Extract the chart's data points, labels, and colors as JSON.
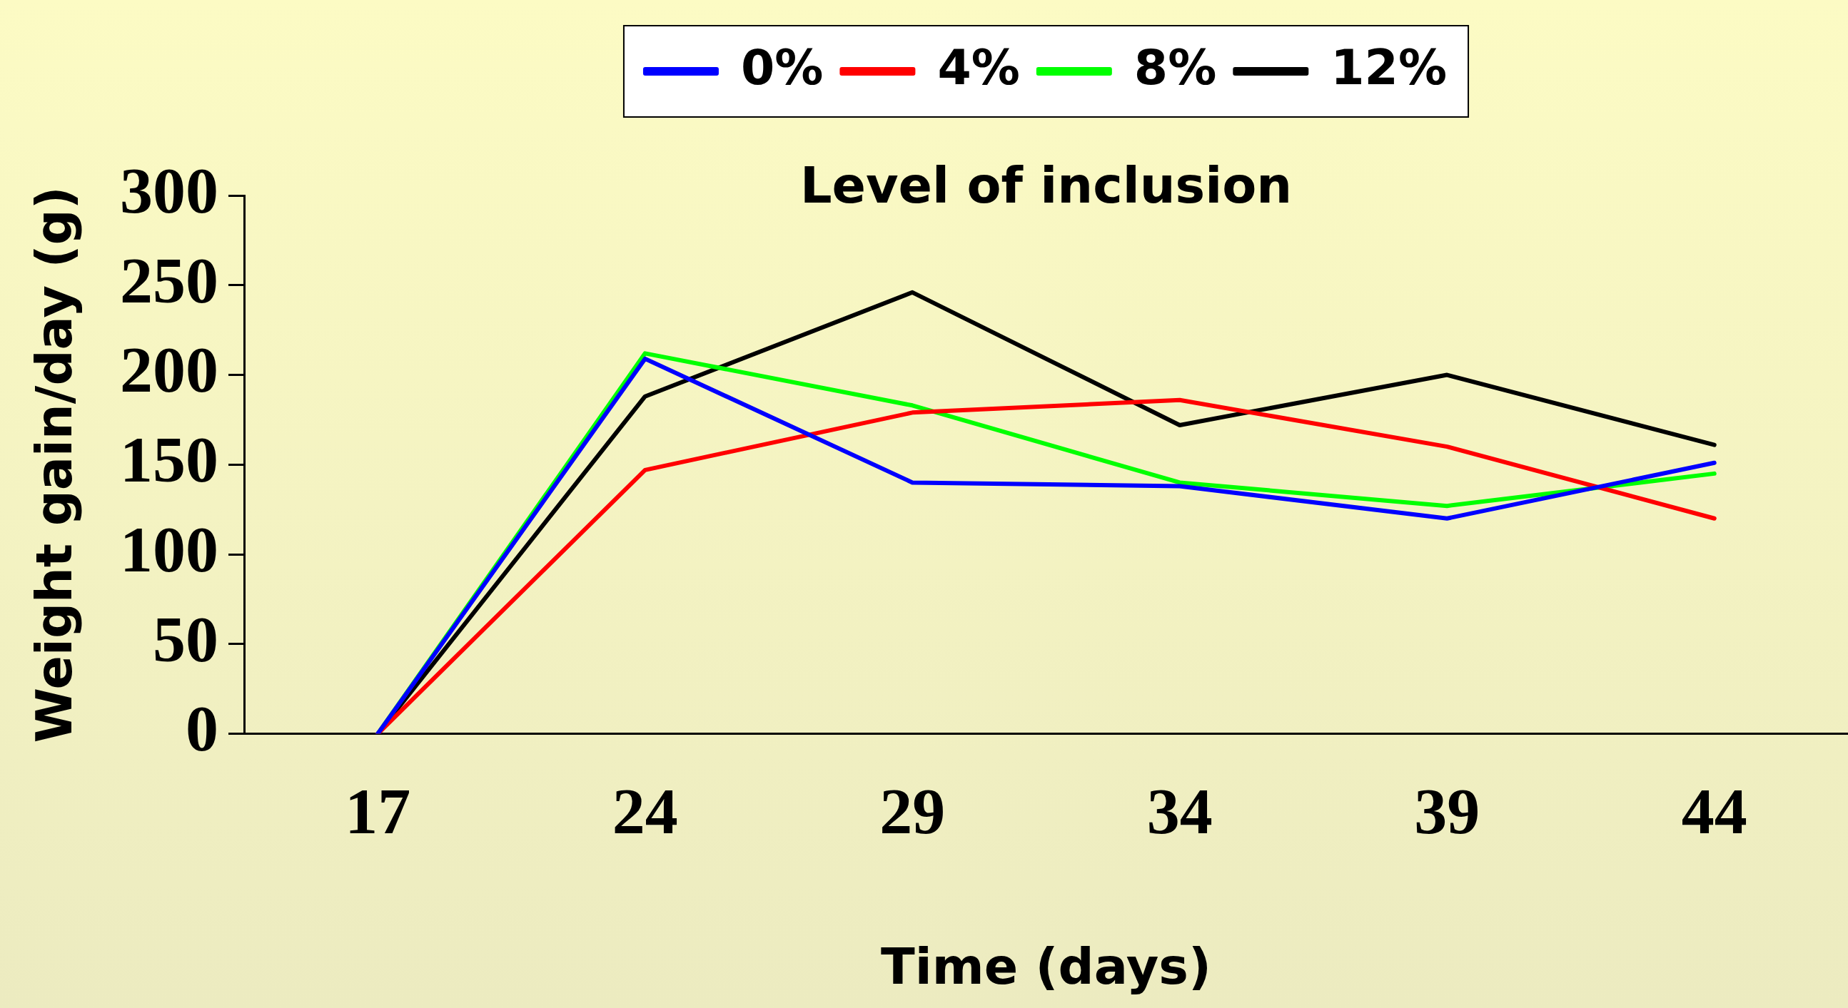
{
  "chart_data": {
    "type": "line",
    "legend_title": "Level of inclusion",
    "xlabel": "Time (days)",
    "ylabel": "Weight gain/day (g)",
    "categories": [
      "17",
      "24",
      "29",
      "34",
      "39",
      "44"
    ],
    "series": [
      {
        "name": "0%",
        "color": "#0000ff",
        "values": [
          0,
          209,
          140,
          138,
          120,
          151
        ]
      },
      {
        "name": "4%",
        "color": "#ff0000",
        "values": [
          0,
          147,
          179,
          186,
          160,
          120
        ]
      },
      {
        "name": "8%",
        "color": "#00ff00",
        "values": [
          0,
          212,
          183,
          140,
          127,
          145
        ]
      },
      {
        "name": "12%",
        "color": "#000000",
        "values": [
          0,
          188,
          246,
          172,
          200,
          161
        ]
      }
    ],
    "ylim": [
      0,
      300
    ],
    "yticks": [
      0,
      50,
      100,
      150,
      200,
      250,
      300
    ],
    "grid": false,
    "legend": "top",
    "marker": "none",
    "line_style": "solid"
  }
}
